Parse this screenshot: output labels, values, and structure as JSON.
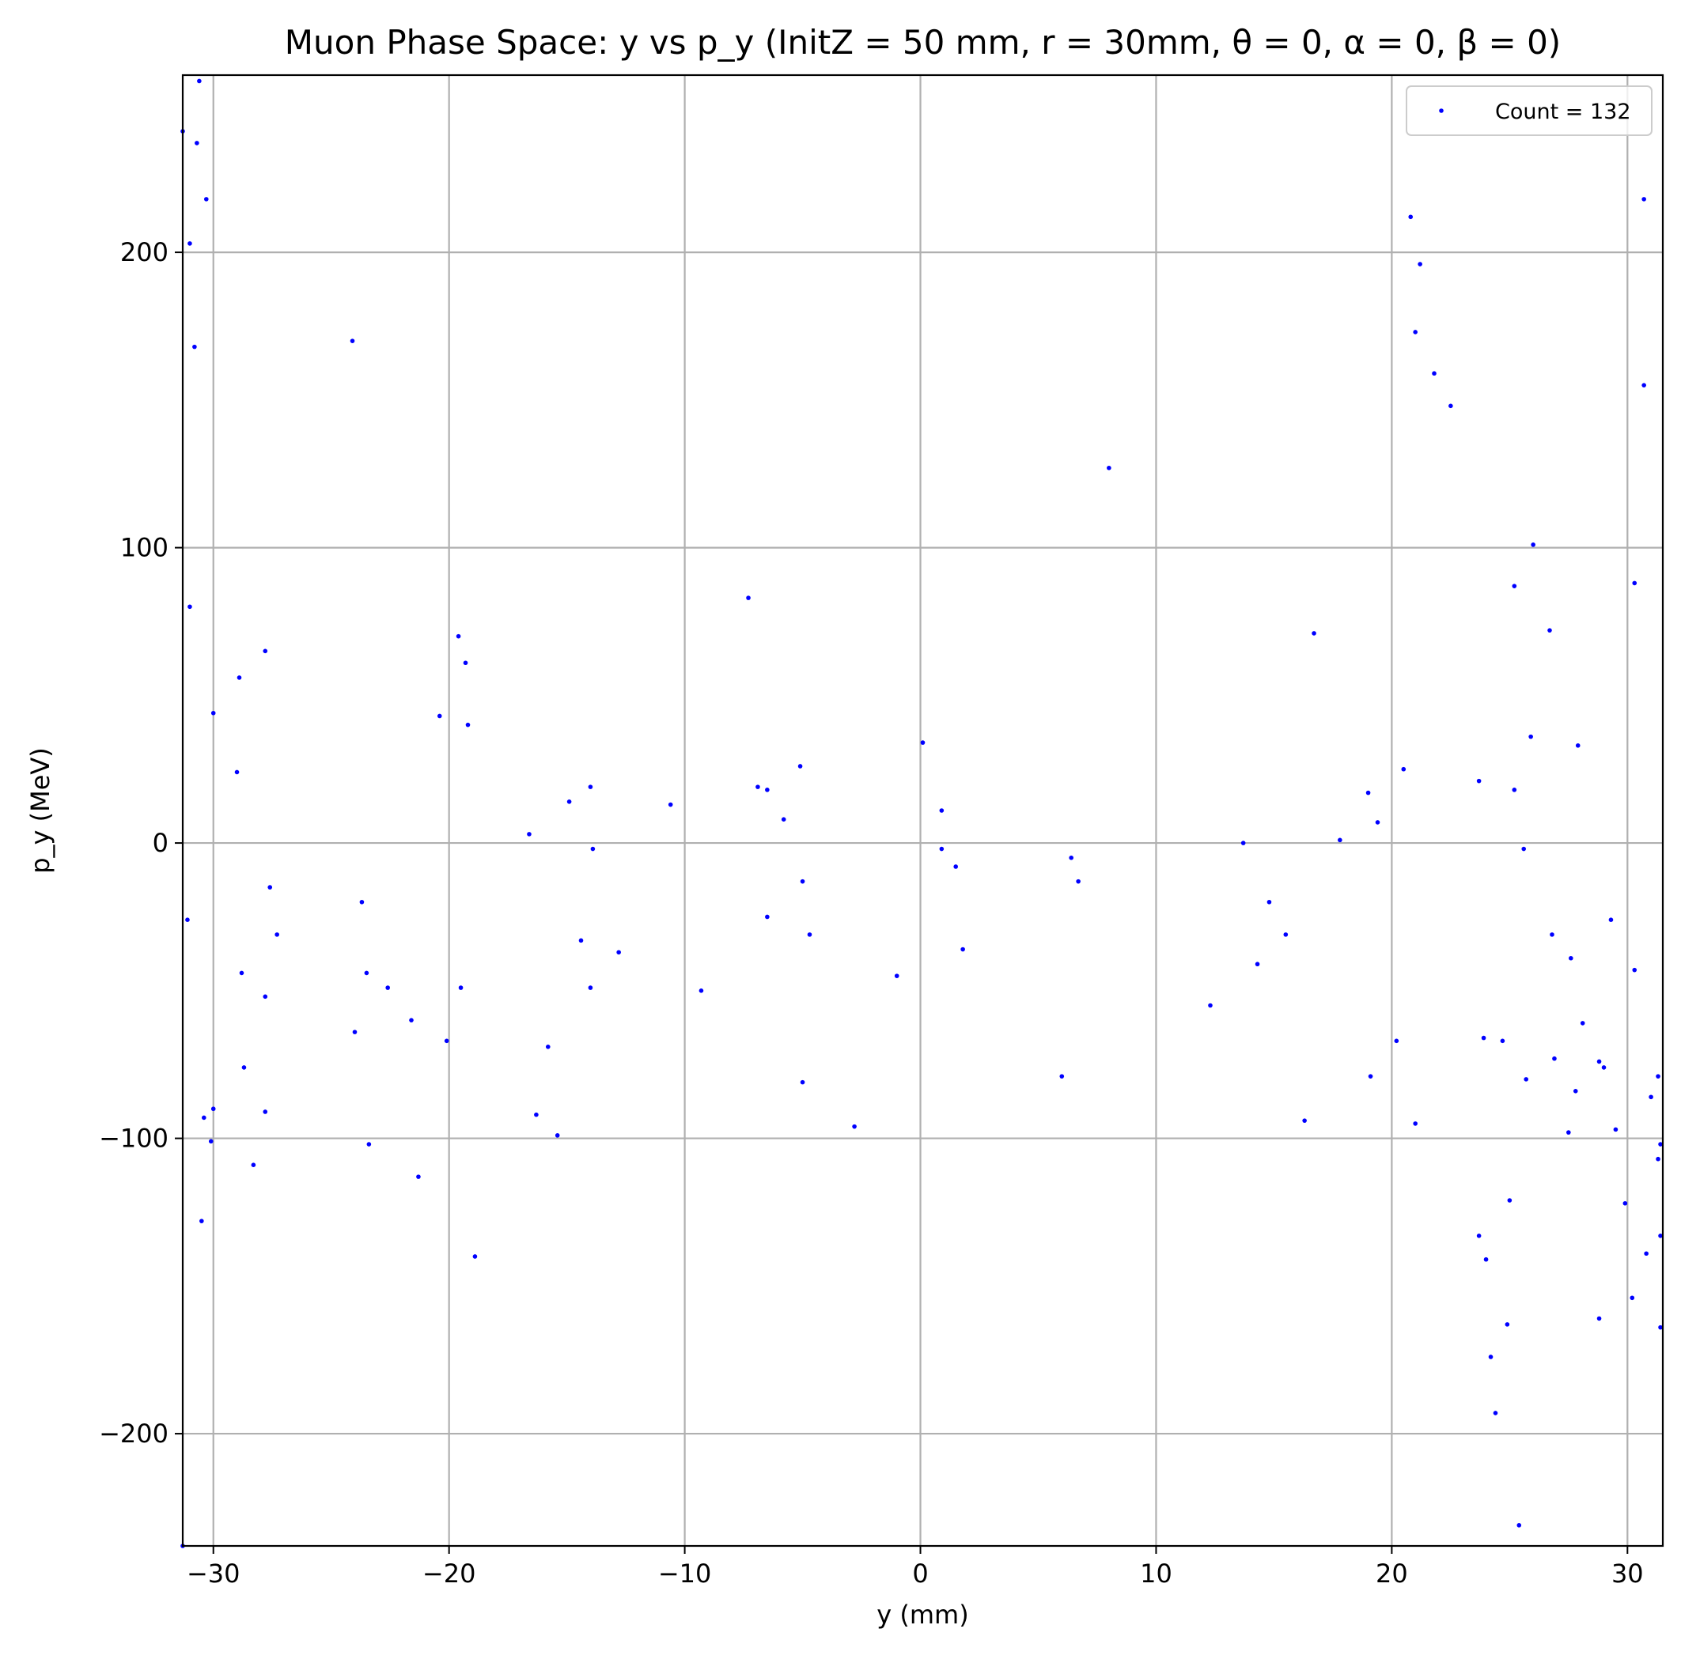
{
  "chart_data": {
    "type": "scatter",
    "title": "Muon Phase Space: y vs p_y (InitZ = 50 mm, r = 30mm, θ = 0, α = 0, β = 0)",
    "xlabel": "y (mm)",
    "ylabel": "p_y (MeV)",
    "xlim": [
      -31.3,
      31.5
    ],
    "ylim": [
      -238,
      260
    ],
    "xticks": [
      -30,
      -20,
      -10,
      0,
      10,
      20,
      30
    ],
    "yticks": [
      -200,
      -100,
      0,
      100,
      200
    ],
    "xtick_labels": [
      "−30",
      "−20",
      "−10",
      "0",
      "10",
      "20",
      "30"
    ],
    "ytick_labels": [
      "−200",
      "−100",
      "0",
      "100",
      "200"
    ],
    "grid": true,
    "legend_position": "top-right",
    "series": [
      {
        "name": "Count = 132",
        "color": "#0000ff",
        "marker": "dot",
        "points": [
          [
            -31.3,
            241
          ],
          [
            -30.6,
            258
          ],
          [
            -30.7,
            237
          ],
          [
            -30.3,
            218
          ],
          [
            -31.0,
            203
          ],
          [
            -30.8,
            168
          ],
          [
            -31.0,
            80
          ],
          [
            -30.0,
            44
          ],
          [
            -31.1,
            -26
          ],
          [
            -30.4,
            -93
          ],
          [
            -30.0,
            -90
          ],
          [
            -30.1,
            -101
          ],
          [
            -30.5,
            -128
          ],
          [
            -31.3,
            -238
          ],
          [
            -28.9,
            56
          ],
          [
            -29.0,
            24
          ],
          [
            -28.8,
            -44
          ],
          [
            -28.7,
            -76
          ],
          [
            -28.3,
            -109
          ],
          [
            -27.8,
            65
          ],
          [
            -27.6,
            -15
          ],
          [
            -27.3,
            -31
          ],
          [
            -27.8,
            -52
          ],
          [
            -27.8,
            -91
          ],
          [
            -24.1,
            170
          ],
          [
            -23.7,
            -20
          ],
          [
            -23.5,
            -44
          ],
          [
            -24.0,
            -64
          ],
          [
            -23.4,
            -102
          ],
          [
            -22.6,
            -49
          ],
          [
            -21.6,
            -60
          ],
          [
            -21.3,
            -113
          ],
          [
            -20.4,
            43
          ],
          [
            -19.6,
            70
          ],
          [
            -19.3,
            61
          ],
          [
            -19.2,
            40
          ],
          [
            -19.5,
            -49
          ],
          [
            -20.1,
            -67
          ],
          [
            -18.9,
            -140
          ],
          [
            -16.6,
            3
          ],
          [
            -16.3,
            -92
          ],
          [
            -15.8,
            -69
          ],
          [
            -15.4,
            -99
          ],
          [
            -14.9,
            14
          ],
          [
            -14.4,
            -33
          ],
          [
            -14.0,
            19
          ],
          [
            -13.9,
            -2
          ],
          [
            -14.0,
            -49
          ],
          [
            -12.8,
            -37
          ],
          [
            -10.6,
            13
          ],
          [
            -9.3,
            -50
          ],
          [
            -7.3,
            83
          ],
          [
            -6.9,
            19
          ],
          [
            -6.5,
            18
          ],
          [
            -6.5,
            -25
          ],
          [
            -5.8,
            8
          ],
          [
            -5.1,
            26
          ],
          [
            -5.0,
            -13
          ],
          [
            -5.0,
            -81
          ],
          [
            -4.7,
            -31
          ],
          [
            -2.8,
            -96
          ],
          [
            -1.0,
            -45
          ],
          [
            0.1,
            34
          ],
          [
            0.9,
            11
          ],
          [
            0.9,
            -2
          ],
          [
            1.5,
            -8
          ],
          [
            1.8,
            -36
          ],
          [
            6.0,
            -79
          ],
          [
            6.4,
            -5
          ],
          [
            6.7,
            -13
          ],
          [
            8.0,
            127
          ],
          [
            12.3,
            -55
          ],
          [
            13.7,
            0
          ],
          [
            14.3,
            -41
          ],
          [
            14.8,
            -20
          ],
          [
            15.5,
            -31
          ],
          [
            16.3,
            -94
          ],
          [
            16.7,
            71
          ],
          [
            17.8,
            1
          ],
          [
            19.0,
            17
          ],
          [
            19.1,
            -79
          ],
          [
            19.4,
            7
          ],
          [
            20.2,
            -67
          ],
          [
            20.5,
            25
          ],
          [
            20.8,
            212
          ],
          [
            21.0,
            173
          ],
          [
            21.2,
            196
          ],
          [
            21.0,
            -95
          ],
          [
            21.8,
            159
          ],
          [
            22.5,
            148
          ],
          [
            23.7,
            21
          ],
          [
            23.7,
            -133
          ],
          [
            23.9,
            -66
          ],
          [
            24.0,
            -141
          ],
          [
            24.2,
            -174
          ],
          [
            24.4,
            -193
          ],
          [
            24.7,
            -67
          ],
          [
            24.9,
            -163
          ],
          [
            25.0,
            -121
          ],
          [
            25.2,
            87
          ],
          [
            25.2,
            18
          ],
          [
            25.4,
            -231
          ],
          [
            25.6,
            -2
          ],
          [
            25.7,
            -80
          ],
          [
            25.9,
            36
          ],
          [
            26.0,
            101
          ],
          [
            26.7,
            72
          ],
          [
            26.8,
            -31
          ],
          [
            26.9,
            -73
          ],
          [
            27.5,
            -98
          ],
          [
            27.6,
            -39
          ],
          [
            27.8,
            -84
          ],
          [
            27.9,
            33
          ],
          [
            28.1,
            -61
          ],
          [
            28.8,
            -74
          ],
          [
            28.8,
            -161
          ],
          [
            29.0,
            -76
          ],
          [
            29.3,
            -26
          ],
          [
            29.5,
            -97
          ],
          [
            29.9,
            -122
          ],
          [
            30.2,
            -154
          ],
          [
            30.3,
            88
          ],
          [
            30.3,
            -43
          ],
          [
            30.7,
            218
          ],
          [
            30.7,
            155
          ],
          [
            30.8,
            -139
          ],
          [
            31.0,
            -86
          ],
          [
            31.3,
            -79
          ],
          [
            31.4,
            -102
          ],
          [
            31.3,
            -107
          ],
          [
            31.4,
            -133
          ],
          [
            31.4,
            -164
          ]
        ]
      }
    ]
  }
}
